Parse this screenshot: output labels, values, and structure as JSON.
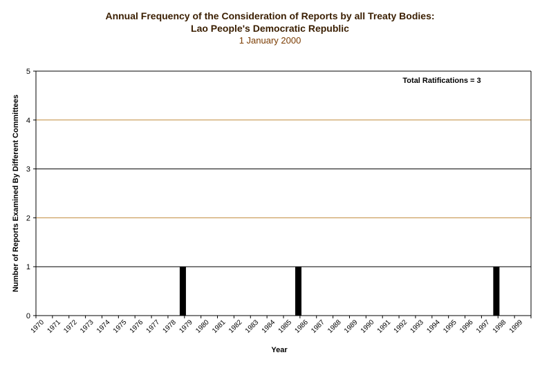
{
  "chart_data": {
    "type": "bar",
    "title_line1": "Annual Frequency of the Consideration of Reports by all Treaty Bodies:",
    "title_line2": "Lao People's Democratic Republic",
    "subtitle": "1 January 2000",
    "xlabel": "Year",
    "ylabel": "Number of Reports Examined By Different Committees",
    "annotation": "Total Ratifications = 3",
    "ylim": [
      0,
      5
    ],
    "yticks": [
      "0",
      "1",
      "2",
      "3",
      "4",
      "5"
    ],
    "categories": [
      "1970",
      "1971",
      "1972",
      "1973",
      "1974",
      "1975",
      "1976",
      "1977",
      "1978",
      "1979",
      "1980",
      "1981",
      "1982",
      "1983",
      "1984",
      "1985",
      "1986",
      "1987",
      "1988",
      "1989",
      "1990",
      "1991",
      "1992",
      "1993",
      "1994",
      "1995",
      "1996",
      "1997",
      "1998",
      "1999"
    ],
    "values": [
      0,
      0,
      0,
      0,
      0,
      0,
      0,
      0,
      1,
      0,
      0,
      0,
      0,
      0,
      0,
      1,
      0,
      0,
      0,
      0,
      0,
      0,
      0,
      0,
      0,
      0,
      0,
      1,
      0,
      0
    ],
    "colors": {
      "bar": "#000000",
      "grid_odd": "#000000",
      "grid_even": "#c08a3a",
      "title": "#3a1e00",
      "subtitle": "#7a3b00"
    }
  }
}
